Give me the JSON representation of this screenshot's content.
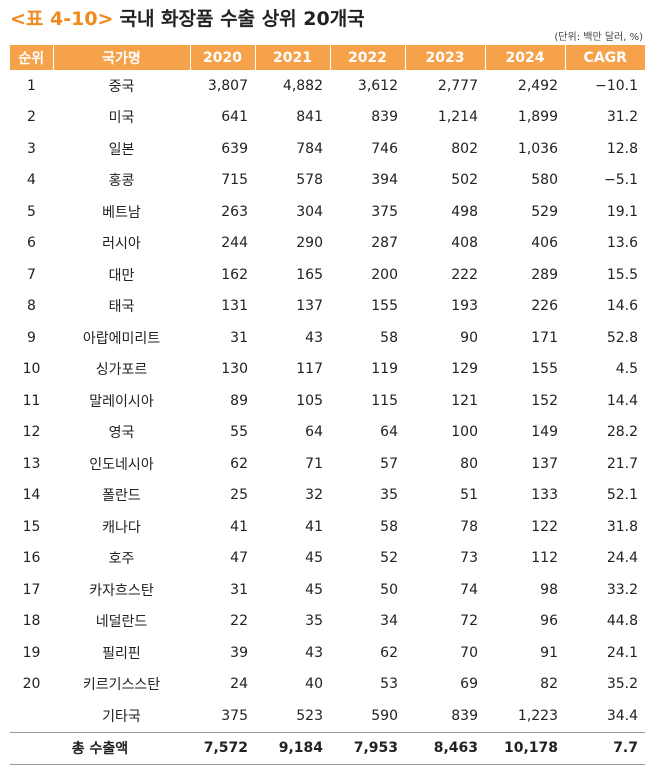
{
  "header": {
    "tag": "<표 4-10>",
    "title": "국내 화장품 수출 상위 20개국",
    "unit": "(단위: 백만 달러, %)"
  },
  "table": {
    "columns": [
      "순위",
      "국가명",
      "2020",
      "2021",
      "2022",
      "2023",
      "2024",
      "CAGR"
    ],
    "rows": [
      [
        "1",
        "중국",
        "3,807",
        "4,882",
        "3,612",
        "2,777",
        "2,492",
        "−10.1"
      ],
      [
        "2",
        "미국",
        "641",
        "841",
        "839",
        "1,214",
        "1,899",
        "31.2"
      ],
      [
        "3",
        "일본",
        "639",
        "784",
        "746",
        "802",
        "1,036",
        "12.8"
      ],
      [
        "4",
        "홍콩",
        "715",
        "578",
        "394",
        "502",
        "580",
        "−5.1"
      ],
      [
        "5",
        "베트남",
        "263",
        "304",
        "375",
        "498",
        "529",
        "19.1"
      ],
      [
        "6",
        "러시아",
        "244",
        "290",
        "287",
        "408",
        "406",
        "13.6"
      ],
      [
        "7",
        "대만",
        "162",
        "165",
        "200",
        "222",
        "289",
        "15.5"
      ],
      [
        "8",
        "태국",
        "131",
        "137",
        "155",
        "193",
        "226",
        "14.6"
      ],
      [
        "9",
        "아랍에미리트",
        "31",
        "43",
        "58",
        "90",
        "171",
        "52.8"
      ],
      [
        "10",
        "싱가포르",
        "130",
        "117",
        "119",
        "129",
        "155",
        "4.5"
      ],
      [
        "11",
        "말레이시아",
        "89",
        "105",
        "115",
        "121",
        "152",
        "14.4"
      ],
      [
        "12",
        "영국",
        "55",
        "64",
        "64",
        "100",
        "149",
        "28.2"
      ],
      [
        "13",
        "인도네시아",
        "62",
        "71",
        "57",
        "80",
        "137",
        "21.7"
      ],
      [
        "14",
        "폴란드",
        "25",
        "32",
        "35",
        "51",
        "133",
        "52.1"
      ],
      [
        "15",
        "캐나다",
        "41",
        "41",
        "58",
        "78",
        "122",
        "31.8"
      ],
      [
        "16",
        "호주",
        "47",
        "45",
        "52",
        "73",
        "112",
        "24.4"
      ],
      [
        "17",
        "카자흐스탄",
        "31",
        "45",
        "50",
        "74",
        "98",
        "33.2"
      ],
      [
        "18",
        "네덜란드",
        "22",
        "35",
        "34",
        "72",
        "96",
        "44.8"
      ],
      [
        "19",
        "필리핀",
        "39",
        "43",
        "62",
        "70",
        "91",
        "24.1"
      ],
      [
        "20",
        "키르기스스탄",
        "24",
        "40",
        "53",
        "69",
        "82",
        "35.2"
      ]
    ],
    "others": {
      "label": "기타국",
      "values": [
        "375",
        "523",
        "590",
        "839",
        "1,223",
        "34.4"
      ]
    },
    "total": {
      "label": "총 수출액",
      "values": [
        "7,572",
        "9,184",
        "7,953",
        "8,463",
        "10,178",
        "7.7"
      ]
    }
  }
}
